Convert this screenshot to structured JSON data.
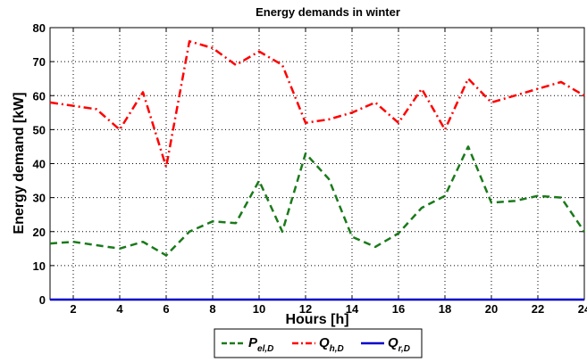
{
  "chart_data": {
    "type": "line",
    "title": "Energy demands in winter",
    "xlabel": "Hours [h]",
    "ylabel": "Energy demand [kW]",
    "xlim": [
      1,
      24
    ],
    "ylim": [
      0,
      80
    ],
    "x_ticks": [
      2,
      4,
      6,
      8,
      10,
      12,
      14,
      16,
      18,
      20,
      22,
      24
    ],
    "y_ticks": [
      0,
      10,
      20,
      30,
      40,
      50,
      60,
      70,
      80
    ],
    "grid": true,
    "legend_position": "bottom",
    "x": [
      1,
      2,
      3,
      4,
      5,
      6,
      7,
      8,
      9,
      10,
      11,
      12,
      13,
      14,
      15,
      16,
      17,
      18,
      19,
      20,
      21,
      22,
      23,
      24
    ],
    "series": [
      {
        "name": "P",
        "name_sub": "el,D",
        "color": "#1a7a1a",
        "style": "dashed",
        "values": [
          16.5,
          17,
          16,
          15,
          17,
          13,
          20,
          23,
          22.5,
          35,
          20,
          43,
          35.5,
          18.5,
          15.5,
          19.5,
          27,
          30.5,
          45,
          28.5,
          29,
          30.5,
          30,
          20
        ]
      },
      {
        "name": "Q",
        "name_sub": "h,D",
        "color": "#ff0000",
        "style": "dashdot",
        "values": [
          58,
          57,
          56,
          50,
          61,
          39,
          76,
          74,
          69,
          73,
          69,
          52,
          53,
          55,
          58,
          52,
          62,
          50,
          65,
          58,
          60,
          62,
          64,
          60
        ]
      },
      {
        "name": "Q",
        "name_sub": "r,D",
        "color": "#0000cc",
        "style": "solid",
        "values": [
          0,
          0,
          0,
          0,
          0,
          0,
          0,
          0,
          0,
          0,
          0,
          0,
          0,
          0,
          0,
          0,
          0,
          0,
          0,
          0,
          0,
          0,
          0,
          0
        ]
      }
    ]
  }
}
